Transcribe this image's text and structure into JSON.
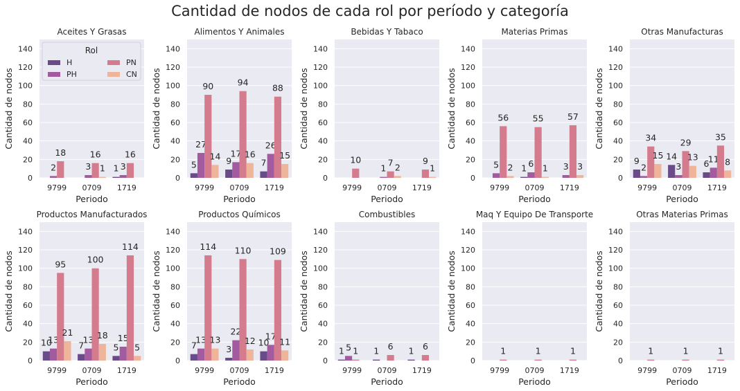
{
  "title": "Cantidad de nodos de cada rol por período y categoría",
  "chart_data": {
    "type": "bar",
    "title": "Cantidad de nodos de cada rol por período y categoría",
    "xlabel": "Periodo",
    "ylabel": "Cantidad de nodos",
    "ylim": [
      0,
      150
    ],
    "yticks": [
      0,
      20,
      40,
      60,
      80,
      100,
      120,
      140
    ],
    "grid": true,
    "categories": [
      "9799",
      "0709",
      "1719"
    ],
    "hue_names": [
      "H",
      "PH",
      "PN",
      "CN"
    ],
    "colors": {
      "H": "#6a4b8a",
      "PH": "#a15b9e",
      "PN": "#d47c8e",
      "CN": "#eeb59a",
      "background": "#eaeaf2"
    },
    "legend": {
      "title": "Rol",
      "placement": "top-left",
      "panel": 0,
      "entries": [
        "H",
        "PH",
        "PN",
        "CN"
      ]
    },
    "panels": [
      {
        "title": "Aceites Y Grasas",
        "series": [
          {
            "name": "H",
            "values": [
              null,
              null,
              1
            ]
          },
          {
            "name": "PH",
            "values": [
              2,
              3,
              3
            ]
          },
          {
            "name": "PN",
            "values": [
              18,
              16,
              16
            ]
          },
          {
            "name": "CN",
            "values": [
              null,
              1,
              null
            ]
          }
        ]
      },
      {
        "title": "Alimentos Y Animales",
        "series": [
          {
            "name": "H",
            "values": [
              5,
              9,
              7
            ]
          },
          {
            "name": "PH",
            "values": [
              27,
              17,
              26
            ]
          },
          {
            "name": "PN",
            "values": [
              90,
              94,
              88
            ]
          },
          {
            "name": "CN",
            "values": [
              14,
              16,
              15
            ]
          }
        ]
      },
      {
        "title": "Bebidas Y Tabaco",
        "series": [
          {
            "name": "H",
            "values": [
              null,
              null,
              null
            ]
          },
          {
            "name": "PH",
            "values": [
              null,
              1,
              null
            ]
          },
          {
            "name": "PN",
            "values": [
              10,
              7,
              9
            ]
          },
          {
            "name": "CN",
            "values": [
              null,
              2,
              1
            ]
          }
        ]
      },
      {
        "title": "Materias Primas",
        "series": [
          {
            "name": "H",
            "values": [
              null,
              1,
              null
            ]
          },
          {
            "name": "PH",
            "values": [
              5,
              6,
              3
            ]
          },
          {
            "name": "PN",
            "values": [
              56,
              55,
              57
            ]
          },
          {
            "name": "CN",
            "values": [
              2,
              1,
              3
            ]
          }
        ]
      },
      {
        "title": "Otras Manufacturas",
        "series": [
          {
            "name": "H",
            "values": [
              9,
              14,
              6
            ]
          },
          {
            "name": "PH",
            "values": [
              2,
              3,
              11
            ]
          },
          {
            "name": "PN",
            "values": [
              34,
              29,
              35
            ]
          },
          {
            "name": "CN",
            "values": [
              15,
              13,
              8
            ]
          }
        ]
      },
      {
        "title": "Productos Manufacturados",
        "series": [
          {
            "name": "H",
            "values": [
              10,
              7,
              5
            ]
          },
          {
            "name": "PH",
            "values": [
              13,
              13,
              15
            ]
          },
          {
            "name": "PN",
            "values": [
              95,
              100,
              114
            ]
          },
          {
            "name": "CN",
            "values": [
              21,
              18,
              5
            ]
          }
        ]
      },
      {
        "title": "Productos Químicos",
        "series": [
          {
            "name": "H",
            "values": [
              7,
              3,
              10
            ]
          },
          {
            "name": "PH",
            "values": [
              13,
              22,
              17
            ]
          },
          {
            "name": "PN",
            "values": [
              114,
              110,
              109
            ]
          },
          {
            "name": "CN",
            "values": [
              13,
              12,
              11
            ]
          }
        ]
      },
      {
        "title": "Combustibles",
        "series": [
          {
            "name": "H",
            "values": [
              1,
              1,
              1
            ]
          },
          {
            "name": "PH",
            "values": [
              5,
              null,
              null
            ]
          },
          {
            "name": "PN",
            "values": [
              1,
              6,
              6
            ]
          },
          {
            "name": "CN",
            "values": [
              null,
              null,
              null
            ]
          }
        ]
      },
      {
        "title": "Maq Y Equipo De Transporte",
        "series": [
          {
            "name": "H",
            "values": [
              null,
              null,
              null
            ]
          },
          {
            "name": "PH",
            "values": [
              null,
              null,
              null
            ]
          },
          {
            "name": "PN",
            "values": [
              1,
              1,
              1
            ]
          },
          {
            "name": "CN",
            "values": [
              null,
              null,
              null
            ]
          }
        ]
      },
      {
        "title": "Otras Materias Primas",
        "series": [
          {
            "name": "H",
            "values": [
              null,
              null,
              null
            ]
          },
          {
            "name": "PH",
            "values": [
              null,
              null,
              null
            ]
          },
          {
            "name": "PN",
            "values": [
              1,
              1,
              1
            ]
          },
          {
            "name": "CN",
            "values": [
              null,
              null,
              null
            ]
          }
        ]
      }
    ]
  }
}
